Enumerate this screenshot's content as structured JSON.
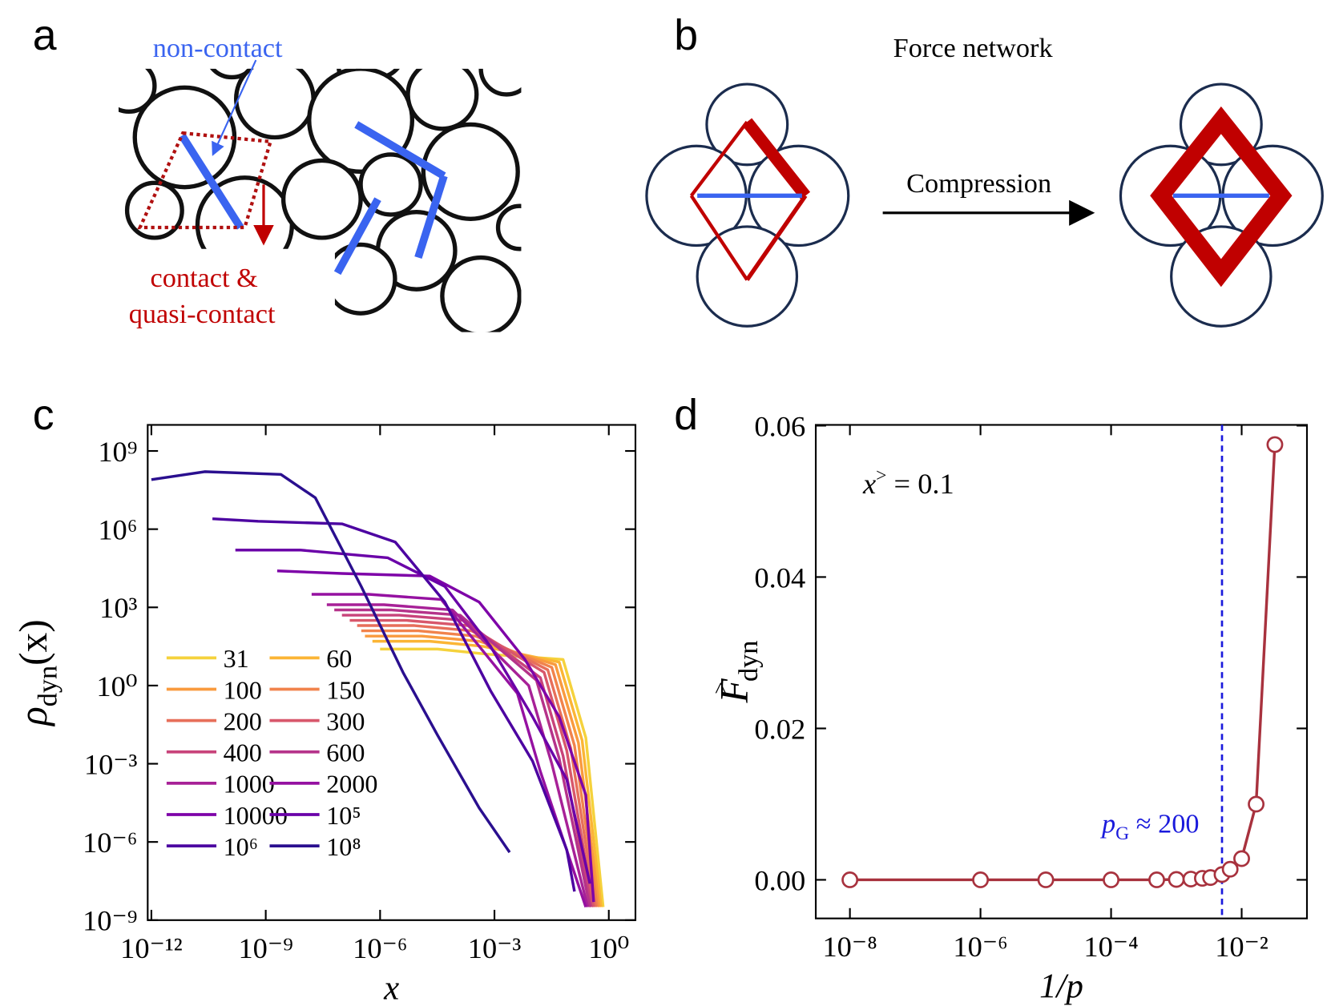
{
  "panel_labels": [
    "a",
    "b",
    "c",
    "d"
  ],
  "panel_a": {
    "labels": [
      "non-contact",
      "contact &",
      "quasi-contact"
    ]
  },
  "panel_b": {
    "title": "Force network",
    "arrow_label": "Compression"
  },
  "chart_data": [
    {
      "type": "line",
      "xscale": "log",
      "yscale": "log",
      "xlim": [
        8e-13,
        5
      ],
      "ylim": [
        1e-09,
        10000000000.0
      ],
      "xticks": [
        {
          "value": 1e-12,
          "label": "10⁻¹²"
        },
        {
          "value": 1e-09,
          "label": "10⁻⁹"
        },
        {
          "value": 1e-06,
          "label": "10⁻⁶"
        },
        {
          "value": 0.001,
          "label": "10⁻³"
        },
        {
          "value": 1,
          "label": "10⁰"
        }
      ],
      "yticks": [
        {
          "value": 1e-09,
          "label": "10⁻⁹"
        },
        {
          "value": 1e-06,
          "label": "10⁻⁶"
        },
        {
          "value": 0.001,
          "label": "10⁻³"
        },
        {
          "value": 1,
          "label": "10⁰"
        },
        {
          "value": 1000.0,
          "label": "10³"
        },
        {
          "value": 1000000.0,
          "label": "10⁶"
        },
        {
          "value": 1000000000.0,
          "label": "10⁹"
        }
      ],
      "xlabel": "x",
      "ylabel": {
        "symbol": "ρ",
        "subscript": "dyn",
        "argument": "(x)"
      },
      "legend": "lower left",
      "series": [
        {
          "name": "31",
          "color": "#f5d23c",
          "x": [
            1e-06,
            3.2e-05,
            0.00063,
            0.063,
            0.25,
            0.71
          ],
          "values": [
            25,
            25,
            16,
            10,
            0.01,
            3.2e-09
          ]
        },
        {
          "name": "60",
          "color": "#fbb535",
          "x": [
            6.3e-07,
            2e-05,
            0.0005,
            0.05,
            0.2,
            0.63
          ],
          "values": [
            50,
            50,
            32,
            7.9,
            0.0079,
            3.2e-09
          ]
        },
        {
          "name": "100",
          "color": "#f99a3e",
          "x": [
            4e-07,
            1.26e-05,
            0.0004,
            0.04,
            0.16,
            0.56
          ],
          "values": [
            79,
            79,
            50,
            6.3,
            0.0063,
            3.2e-09
          ]
        },
        {
          "name": "150",
          "color": "#f1834c",
          "x": [
            3.2e-07,
            1e-05,
            0.00032,
            0.032,
            0.126,
            0.5
          ],
          "values": [
            126,
            126,
            79,
            5,
            0.005,
            3.2e-09
          ]
        },
        {
          "name": "200",
          "color": "#e76f5a",
          "x": [
            2.5e-07,
            7.9e-06,
            0.00025,
            0.025,
            0.1,
            0.45
          ],
          "values": [
            200,
            200,
            126,
            4,
            0.004,
            3.2e-09
          ]
        },
        {
          "name": "300",
          "color": "#d8576b",
          "x": [
            1.6e-07,
            5e-06,
            0.0002,
            0.02,
            0.079,
            0.4
          ],
          "values": [
            316,
            316,
            200,
            3.2,
            0.0032,
            3.2e-09
          ]
        },
        {
          "name": "400",
          "color": "#c8437a",
          "x": [
            1e-07,
            3.2e-06,
            0.00016,
            0.016,
            0.063,
            0.35
          ],
          "values": [
            500,
            500,
            316,
            2,
            0.002,
            3.2e-09
          ]
        },
        {
          "name": "600",
          "color": "#b5338a",
          "x": [
            6.3e-08,
            2e-06,
            0.000126,
            0.0126,
            0.05,
            0.32
          ],
          "values": [
            794,
            794,
            500,
            1.6,
            0.0016,
            3.2e-09
          ]
        },
        {
          "name": "1000",
          "color": "#a72197",
          "x": [
            4e-08,
            1.26e-06,
            7.9e-05,
            0.0079,
            0.032,
            0.28
          ],
          "values": [
            1259,
            1259,
            794,
            1,
            0.001,
            3.2e-09
          ]
        },
        {
          "name": "2000",
          "color": "#9511a1",
          "x": [
            1.6e-08,
            5e-07,
            4e-05,
            0.004,
            0.016,
            0.25
          ],
          "values": [
            3162,
            3162,
            2000,
            0.5,
            0.0005,
            3.2e-09
          ]
        },
        {
          "name": "10000",
          "color": "#7e03a8",
          "x": [
            2e-09,
            1e-07,
            2e-05,
            0.0004,
            0.0063,
            0.05,
            0.25,
            0.4
          ],
          "values": [
            25119,
            19953,
            15849,
            1585,
            10,
            0.063,
            6.3e-05,
            5e-09
          ]
        },
        {
          "name": "10⁵",
          "color": "#6a00a8",
          "x": [
            1.6e-10,
            7.9e-09,
            1.6e-06,
            5e-05,
            0.00079,
            0.01,
            0.079,
            0.32
          ],
          "values": [
            158489,
            158489,
            79433,
            6310,
            31.6,
            0.063,
            0.00025,
            2.5e-08
          ]
        },
        {
          "name": "10⁶",
          "color": "#4c02a1",
          "x": [
            4e-11,
            6.3e-10,
            1e-07,
            2.5e-06,
            5e-05,
            0.00079,
            0.01,
            0.079,
            0.126
          ],
          "values": [
            2500000.0,
            2000000.0,
            1600000.0,
            320000.0,
            1585,
            0.63,
            0.00126,
            5e-07,
            1.26e-08
          ]
        },
        {
          "name": "10⁸",
          "color": "#2a0f8f",
          "x": [
            1e-12,
            2.5e-11,
            2.5e-09,
            2e-08,
            3.2e-07,
            4e-06,
            3.2e-05,
            0.0004,
            0.0025
          ],
          "values": [
            79000000.0,
            160000000.0,
            126000000.0,
            16000000.0,
            6310,
            3.16,
            0.0126,
            2e-05,
            4e-07
          ]
        }
      ]
    },
    {
      "type": "line",
      "xscale": "log",
      "yscale": "linear",
      "marker": "open-circle",
      "xlim": [
        3e-09,
        0.1
      ],
      "ylim": [
        -0.0051,
        0.0601
      ],
      "xticks": [
        {
          "value": 1e-08,
          "label": "10⁻⁸"
        },
        {
          "value": 1e-06,
          "label": "10⁻⁶"
        },
        {
          "value": 0.0001,
          "label": "10⁻⁴"
        },
        {
          "value": 0.01,
          "label": "10⁻²"
        }
      ],
      "yticks": [
        {
          "value": 0,
          "label": "0.00"
        },
        {
          "value": 0.02,
          "label": "0.02"
        },
        {
          "value": 0.04,
          "label": "0.04"
        },
        {
          "value": 0.06,
          "label": "0.06"
        }
      ],
      "xlabel": "1/p",
      "ylabel": {
        "symbol": "F",
        "superscript": ">",
        "subscript": "dyn"
      },
      "inset_label": {
        "symbol": "x",
        "superscript": ">",
        "text": " = 0.1"
      },
      "vline": {
        "x": 0.005,
        "color": "#1a1adc",
        "symbol": "p",
        "subscript": "G",
        "text": " ≈ 200"
      },
      "x": [
        1e-08,
        1e-06,
        1e-05,
        0.0001,
        0.0005,
        0.001,
        0.001667,
        0.0025,
        0.003333,
        0.005,
        0.006667,
        0.01,
        0.016667,
        0.032258
      ],
      "series": [
        {
          "color": "#a8323e",
          "values": [
            0,
            0,
            0,
            0,
            0,
            5e-05,
            0.0001,
            0.0002,
            0.0003,
            0.0007,
            0.0014,
            0.0028,
            0.01,
            0.0575
          ]
        }
      ]
    }
  ]
}
